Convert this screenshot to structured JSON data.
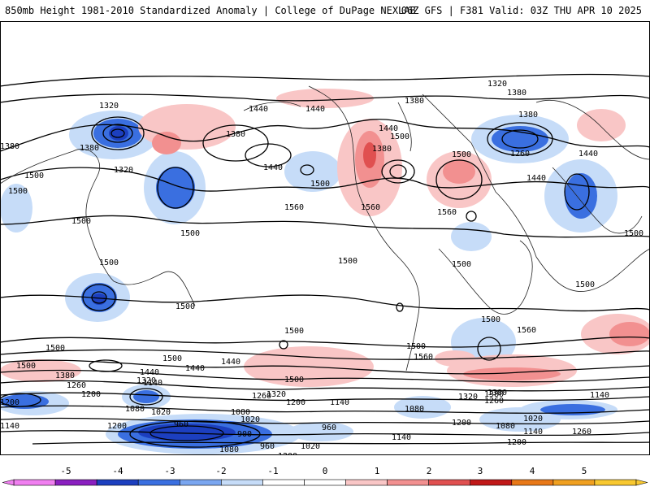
{
  "header": {
    "title": "850mb Height 1981-2010 Standardized Anomaly | College of DuPage NEXLAB",
    "run_info": "06Z GFS | F381 Valid: 03Z THU APR 10 2025"
  },
  "map": {
    "contour_labels": [
      "1320",
      "1380",
      "1380",
      "1320",
      "1440",
      "1440",
      "1380",
      "1380",
      "1440",
      "1500",
      "1500",
      "1440",
      "1440",
      "1380",
      "1380",
      "1260",
      "1500",
      "1440",
      "1320",
      "1380",
      "1500",
      "1500",
      "1500",
      "1500",
      "1500",
      "1560",
      "1560",
      "1560",
      "1500",
      "1500",
      "1500",
      "1500",
      "1500",
      "1500",
      "1500",
      "1500",
      "1500",
      "1500",
      "1560",
      "1500",
      "1560",
      "1500",
      "1440",
      "1440",
      "1380",
      "1440",
      "1380",
      "1320",
      "1260",
      "1140",
      "1200",
      "1080",
      "1020",
      "960",
      "900",
      "960",
      "1020",
      "1080",
      "1200",
      "1260",
      "1320",
      "1200",
      "1140",
      "1080",
      "1020",
      "960",
      "1140",
      "1200",
      "1080",
      "1200",
      "1320",
      "1380",
      "1260",
      "1140",
      "1020",
      "1080",
      "1140",
      "1260",
      "1200",
      "1140",
      "1200"
    ]
  },
  "colorbar": {
    "tick_labels": [
      "-5",
      "-4",
      "-3",
      "-2",
      "-1",
      "0",
      "1",
      "2",
      "3",
      "4",
      "5"
    ],
    "colors": [
      "#f07ff0",
      "#8a1fc0",
      "#1c3fbf",
      "#3a6fe0",
      "#7aa6f0",
      "#c6dcf8",
      "#ffffff",
      "#ffffff",
      "#f9c6c6",
      "#f29090",
      "#e05050",
      "#c01818",
      "#e87818",
      "#f0a020",
      "#f8c830"
    ]
  }
}
